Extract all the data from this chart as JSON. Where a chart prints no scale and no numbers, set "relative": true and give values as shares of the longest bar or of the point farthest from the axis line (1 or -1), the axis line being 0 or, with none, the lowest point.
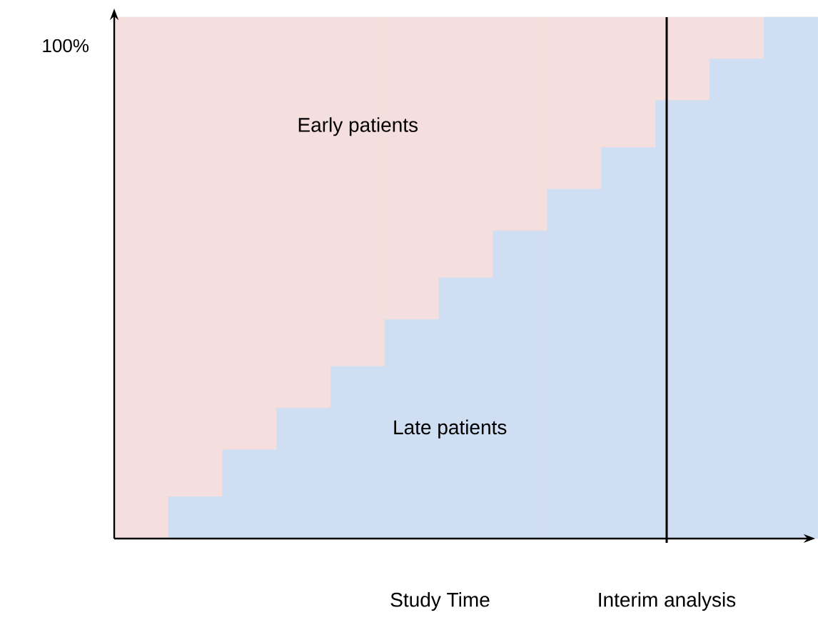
{
  "chart_data": {
    "type": "bar",
    "stacked": true,
    "relative": true,
    "xlabel": "Study Time",
    "categories": [
      null,
      null,
      null,
      null,
      null,
      null,
      null,
      null,
      null,
      null,
      null,
      null,
      null
    ],
    "series": [
      {
        "name": "Late patients",
        "color": "#cfdef2",
        "values": [
          0,
          0.08,
          0.17,
          0.25,
          0.33,
          0.42,
          0.5,
          0.59,
          0.67,
          0.75,
          0.84,
          0.92,
          1
        ]
      },
      {
        "name": "Early patients",
        "color": "#f5dfde",
        "values": [
          1,
          0.92,
          0.83,
          0.75,
          0.67,
          0.58,
          0.5,
          0.41,
          0.33,
          0.25,
          0.16,
          0.08,
          0
        ]
      }
    ],
    "annotations": [
      "100%",
      "Interim analysis"
    ]
  }
}
